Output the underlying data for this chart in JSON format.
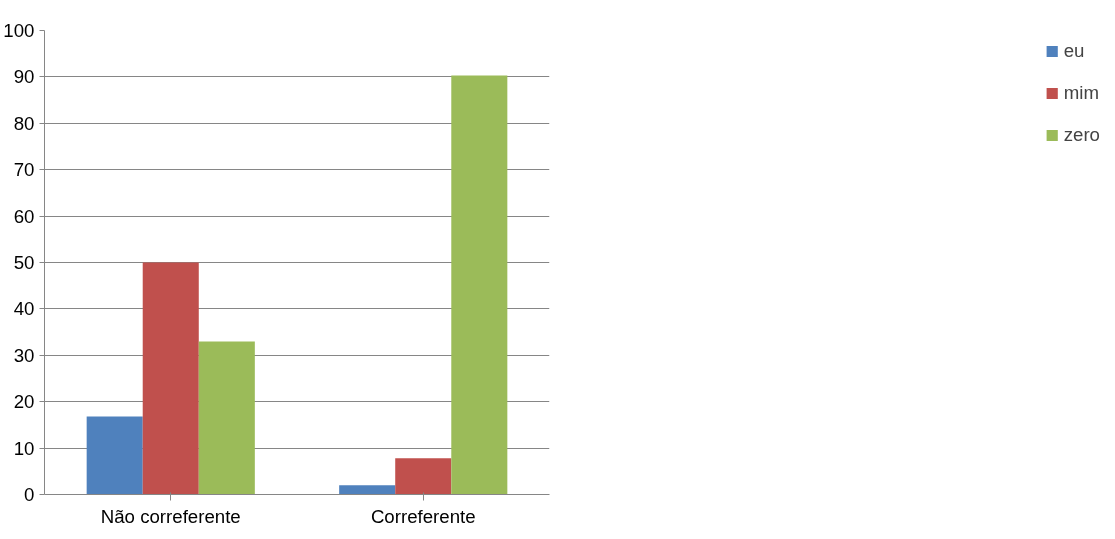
{
  "chart_data": {
    "type": "bar",
    "categories": [
      "Não correferente",
      "Correferente"
    ],
    "series": [
      {
        "name": "eu",
        "color": "#4f81bd",
        "values": [
          16.8,
          2
        ]
      },
      {
        "name": "mim",
        "color": "#c0504d",
        "values": [
          50,
          7.8
        ]
      },
      {
        "name": "zero",
        "color": "#9bbb59",
        "values": [
          33,
          90.3
        ]
      }
    ],
    "ylim": [
      0,
      100
    ],
    "yticks": [
      0,
      10,
      20,
      30,
      40,
      50,
      60,
      70,
      80,
      90,
      100
    ],
    "grid": "y",
    "legend": "right"
  }
}
